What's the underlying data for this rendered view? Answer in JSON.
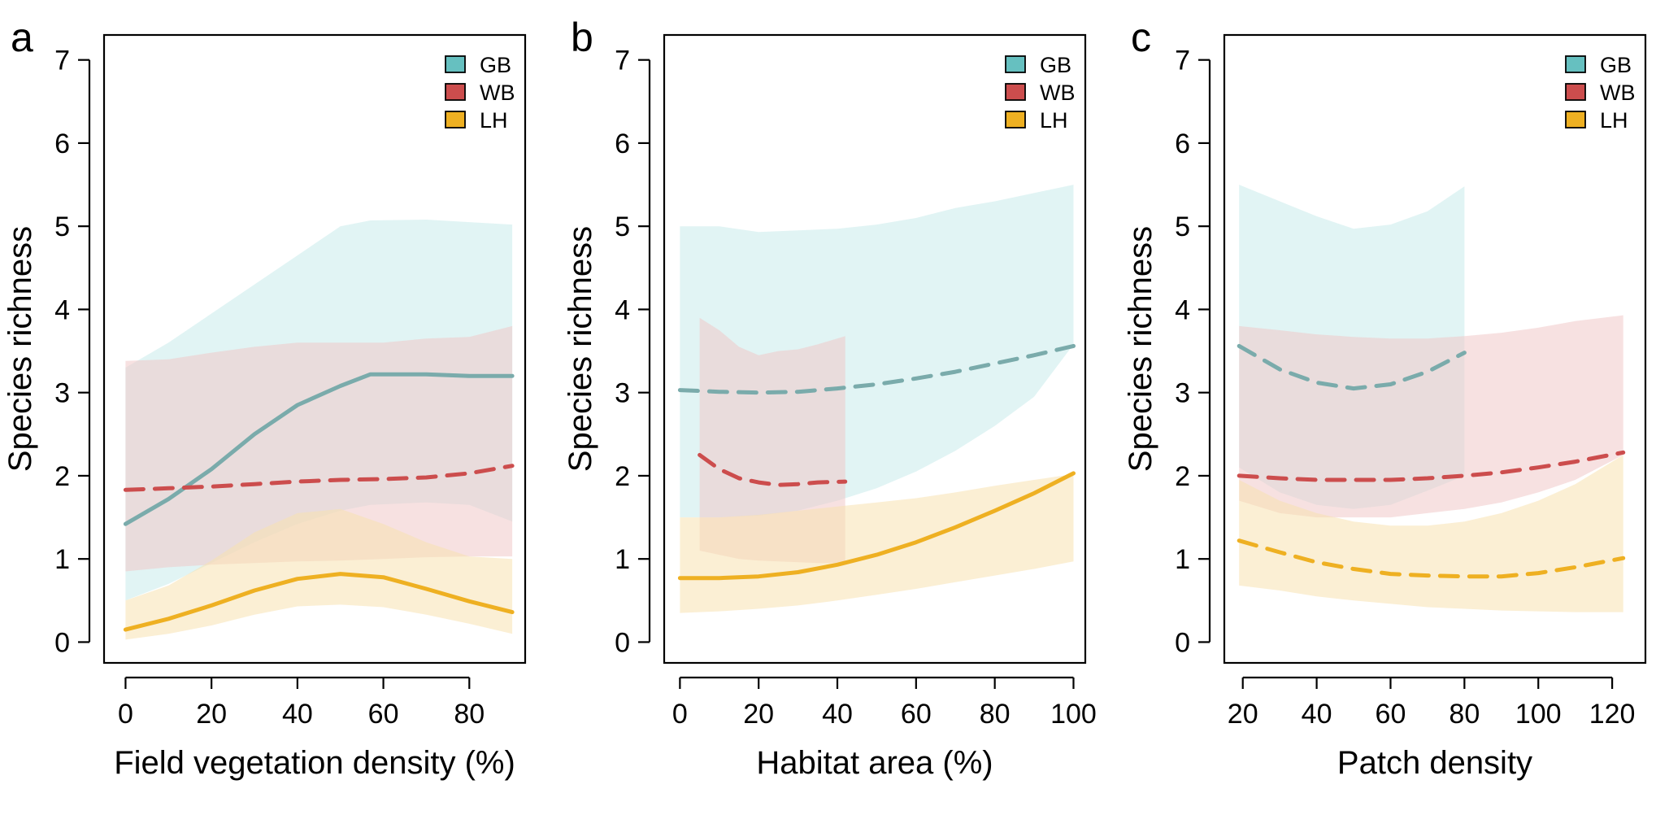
{
  "figure": {
    "panels": [
      {
        "letter": "a",
        "ylabel": "Species richness",
        "xlabel": "Field vegetation density (%)",
        "xlim": [
          -5,
          93
        ],
        "ylim": [
          -0.25,
          7.3
        ],
        "xticks": [
          0,
          20,
          40,
          60,
          80
        ],
        "yticks": [
          0,
          1,
          2,
          3,
          4,
          5,
          6,
          7
        ]
      },
      {
        "letter": "b",
        "ylabel": "Species richness",
        "xlabel": "Habitat area (%)",
        "xlim": [
          -4,
          103
        ],
        "ylim": [
          -0.25,
          7.3
        ],
        "xticks": [
          0,
          20,
          40,
          60,
          80,
          100
        ],
        "yticks": [
          0,
          1,
          2,
          3,
          4,
          5,
          6,
          7
        ]
      },
      {
        "letter": "c",
        "ylabel": "Species richness",
        "xlabel": "Patch density",
        "xlim": [
          15,
          129
        ],
        "ylim": [
          -0.25,
          7.3
        ],
        "xticks": [
          20,
          40,
          60,
          80,
          100,
          120
        ],
        "yticks": [
          0,
          1,
          2,
          3,
          4,
          5,
          6,
          7
        ]
      }
    ]
  },
  "legend": {
    "items": [
      {
        "label": "GB",
        "color": "#66c0c0"
      },
      {
        "label": "WB",
        "color": "#cc4d4d"
      },
      {
        "label": "LH",
        "color": "#eeb022"
      }
    ]
  },
  "colors": {
    "GB_line": "#7aabab",
    "GB_band": "#cdecec",
    "WB_line": "#cc4d4d",
    "WB_band": "#f0c8c8",
    "LH_line": "#eeb022",
    "LH_band": "#f8e2b0"
  },
  "chart_data": [
    {
      "type": "line",
      "panel": "a",
      "xlabel": "Field vegetation density (%)",
      "ylabel": "Species richness",
      "xlim": [
        -5,
        93
      ],
      "ylim": [
        -0.25,
        7.3
      ],
      "series": [
        {
          "name": "GB",
          "linestyle": "solid",
          "x": [
            0,
            10,
            20,
            30,
            40,
            50,
            57,
            70,
            80,
            90
          ],
          "y": [
            1.42,
            1.72,
            2.08,
            2.5,
            2.85,
            3.08,
            3.22,
            3.22,
            3.2,
            3.2
          ],
          "lower": [
            0.5,
            0.7,
            0.95,
            1.2,
            1.42,
            1.58,
            1.65,
            1.68,
            1.65,
            1.45
          ],
          "upper": [
            3.3,
            3.6,
            3.95,
            4.3,
            4.65,
            5.0,
            5.07,
            5.08,
            5.05,
            5.02
          ]
        },
        {
          "name": "WB",
          "linestyle": "dashed",
          "x": [
            0,
            10,
            20,
            30,
            40,
            50,
            60,
            70,
            80,
            90
          ],
          "y": [
            1.83,
            1.85,
            1.87,
            1.9,
            1.93,
            1.95,
            1.96,
            1.98,
            2.03,
            2.12
          ],
          "lower": [
            0.85,
            0.9,
            0.93,
            0.95,
            0.97,
            0.98,
            1.0,
            1.02,
            1.03,
            1.03
          ],
          "upper": [
            3.38,
            3.4,
            3.48,
            3.55,
            3.6,
            3.6,
            3.6,
            3.65,
            3.67,
            3.8
          ]
        },
        {
          "name": "LH",
          "linestyle": "solid",
          "x": [
            0,
            10,
            20,
            30,
            40,
            50,
            60,
            70,
            80,
            90
          ],
          "y": [
            0.15,
            0.28,
            0.44,
            0.62,
            0.76,
            0.82,
            0.78,
            0.64,
            0.49,
            0.36
          ],
          "lower": [
            0.03,
            0.1,
            0.2,
            0.33,
            0.43,
            0.45,
            0.42,
            0.33,
            0.22,
            0.1
          ],
          "upper": [
            0.5,
            0.68,
            0.98,
            1.32,
            1.55,
            1.6,
            1.42,
            1.2,
            1.03,
            1.0
          ]
        }
      ]
    },
    {
      "type": "line",
      "panel": "b",
      "xlabel": "Habitat area (%)",
      "ylabel": "Species richness",
      "xlim": [
        -4,
        103
      ],
      "ylim": [
        -0.25,
        7.3
      ],
      "series": [
        {
          "name": "GB",
          "linestyle": "dashed",
          "x": [
            0,
            10,
            20,
            30,
            40,
            50,
            60,
            70,
            80,
            90,
            100
          ],
          "y": [
            3.03,
            3.01,
            3.0,
            3.01,
            3.05,
            3.1,
            3.17,
            3.25,
            3.35,
            3.45,
            3.56
          ],
          "lower": [
            1.5,
            1.5,
            1.52,
            1.58,
            1.7,
            1.85,
            2.05,
            2.3,
            2.6,
            2.95,
            3.58
          ],
          "upper": [
            5.0,
            5.0,
            4.93,
            4.95,
            4.97,
            5.02,
            5.1,
            5.22,
            5.3,
            5.4,
            5.5
          ]
        },
        {
          "name": "WB",
          "linestyle": "dashed",
          "x": [
            5,
            10,
            15,
            20,
            25,
            30,
            35,
            42
          ],
          "y": [
            2.25,
            2.08,
            1.97,
            1.92,
            1.89,
            1.9,
            1.92,
            1.93
          ],
          "lower": [
            1.1,
            1.05,
            1.0,
            0.98,
            0.97,
            0.96,
            0.95,
            0.95
          ],
          "upper": [
            3.9,
            3.75,
            3.55,
            3.45,
            3.5,
            3.52,
            3.58,
            3.68
          ]
        },
        {
          "name": "LH",
          "linestyle": "solid",
          "x": [
            0,
            10,
            20,
            30,
            40,
            50,
            60,
            70,
            80,
            90,
            100
          ],
          "y": [
            0.77,
            0.77,
            0.79,
            0.84,
            0.93,
            1.05,
            1.2,
            1.38,
            1.58,
            1.79,
            2.03
          ],
          "lower": [
            0.35,
            0.37,
            0.4,
            0.44,
            0.5,
            0.57,
            0.64,
            0.72,
            0.8,
            0.88,
            0.97
          ],
          "upper": [
            1.5,
            1.5,
            1.53,
            1.58,
            1.63,
            1.68,
            1.73,
            1.8,
            1.88,
            1.95,
            2.02
          ]
        }
      ]
    },
    {
      "type": "line",
      "panel": "c",
      "xlabel": "Patch density",
      "ylabel": "Species richness",
      "xlim": [
        15,
        129
      ],
      "ylim": [
        -0.25,
        7.3
      ],
      "series": [
        {
          "name": "GB",
          "linestyle": "dashed",
          "x": [
            19,
            30,
            40,
            50,
            60,
            70,
            80
          ],
          "y": [
            3.56,
            3.28,
            3.12,
            3.05,
            3.1,
            3.25,
            3.48
          ],
          "lower": [
            2.1,
            1.8,
            1.65,
            1.6,
            1.65,
            1.82,
            2.0
          ],
          "upper": [
            5.5,
            5.3,
            5.12,
            4.97,
            5.02,
            5.18,
            5.48
          ]
        },
        {
          "name": "WB",
          "linestyle": "dashed",
          "x": [
            19,
            30,
            40,
            50,
            60,
            70,
            80,
            90,
            100,
            110,
            123
          ],
          "y": [
            2.0,
            1.97,
            1.95,
            1.95,
            1.95,
            1.97,
            2.0,
            2.04,
            2.1,
            2.17,
            2.28
          ],
          "lower": [
            1.7,
            1.55,
            1.5,
            1.5,
            1.5,
            1.55,
            1.6,
            1.68,
            1.8,
            1.95,
            2.25
          ],
          "upper": [
            3.8,
            3.75,
            3.7,
            3.67,
            3.65,
            3.65,
            3.68,
            3.72,
            3.78,
            3.86,
            3.93
          ]
        },
        {
          "name": "LH",
          "linestyle": "dashed",
          "x": [
            19,
            30,
            40,
            50,
            60,
            70,
            80,
            90,
            100,
            110,
            123
          ],
          "y": [
            1.22,
            1.08,
            0.96,
            0.88,
            0.82,
            0.8,
            0.79,
            0.79,
            0.83,
            0.9,
            1.01
          ],
          "lower": [
            0.68,
            0.62,
            0.55,
            0.5,
            0.46,
            0.42,
            0.4,
            0.38,
            0.37,
            0.36,
            0.36
          ],
          "upper": [
            1.95,
            1.7,
            1.55,
            1.45,
            1.4,
            1.4,
            1.45,
            1.55,
            1.7,
            1.9,
            2.25
          ]
        }
      ]
    }
  ]
}
